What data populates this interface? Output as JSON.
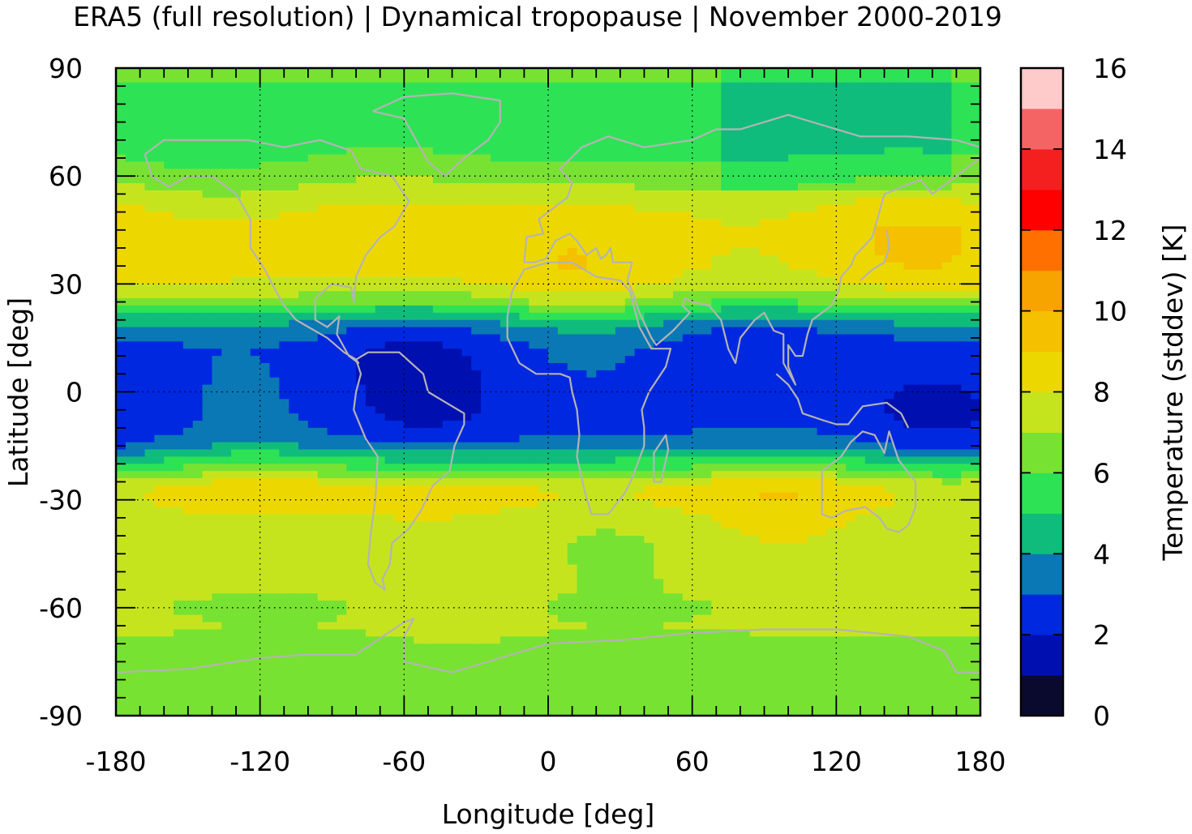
{
  "chart_data": {
    "type": "heatmap",
    "title": "ERA5 (full resolution) | Dynamical tropopause | November 2000-2019",
    "xlabel": "Longitude [deg]",
    "ylabel": "Latitude [deg]",
    "colorbar_label": "Temperature (stddev) [K]",
    "xlim": [
      -180,
      180
    ],
    "ylim": [
      -90,
      90
    ],
    "x_ticks": [
      -180,
      -120,
      -60,
      0,
      60,
      120,
      180
    ],
    "y_ticks": [
      90,
      60,
      30,
      0,
      -30,
      -60,
      -90
    ],
    "x_tick_labels": [
      "-180",
      "-120",
      "-60",
      "0",
      "60",
      "120",
      "180"
    ],
    "y_tick_labels": [
      "90",
      "60",
      "30",
      "0",
      "-30",
      "-60",
      "-90"
    ],
    "grid": true,
    "colorbar": {
      "range": [
        0,
        16
      ],
      "tick_values": [
        0,
        2,
        4,
        6,
        8,
        10,
        12,
        14,
        16
      ],
      "tick_labels": [
        "0",
        "2",
        "4",
        "6",
        "8",
        "10",
        "12",
        "14",
        "16"
      ],
      "levels": [
        {
          "from": 0,
          "to": 1,
          "color": "#0a0a2e"
        },
        {
          "from": 1,
          "to": 2,
          "color": "#0010b0"
        },
        {
          "from": 2,
          "to": 3,
          "color": "#0028e0"
        },
        {
          "from": 3,
          "to": 4,
          "color": "#0a78b4"
        },
        {
          "from": 4,
          "to": 5,
          "color": "#10bc7c"
        },
        {
          "from": 5,
          "to": 6,
          "color": "#2ee256"
        },
        {
          "from": 6,
          "to": 7,
          "color": "#78e232"
        },
        {
          "from": 7,
          "to": 8,
          "color": "#c6e41e"
        },
        {
          "from": 8,
          "to": 9,
          "color": "#ecd800"
        },
        {
          "from": 9,
          "to": 10,
          "color": "#f4c000"
        },
        {
          "from": 10,
          "to": 11,
          "color": "#f8a400"
        },
        {
          "from": 11,
          "to": 12,
          "color": "#ff7000"
        },
        {
          "from": 12,
          "to": 13,
          "color": "#ff0000"
        },
        {
          "from": 13,
          "to": 14,
          "color": "#f42020"
        },
        {
          "from": 14,
          "to": 15,
          "color": "#f46464"
        },
        {
          "from": 15,
          "to": 16,
          "color": "#ffcaca"
        }
      ]
    },
    "zonal_profile": {
      "latitudes": [
        90,
        80,
        70,
        65,
        60,
        55,
        50,
        45,
        40,
        35,
        30,
        25,
        22,
        18,
        12,
        5,
        0,
        -5,
        -10,
        -15,
        -18,
        -22,
        -26,
        -30,
        -35,
        -40,
        -45,
        -50,
        -55,
        -60,
        -65,
        -70,
        -75,
        -80,
        -90
      ],
      "values": [
        6.5,
        5.2,
        5.5,
        6.0,
        6.6,
        7.4,
        8.2,
        8.6,
        8.6,
        8.5,
        8.0,
        6.5,
        5.0,
        3.5,
        2.5,
        2.4,
        2.4,
        2.4,
        2.6,
        3.5,
        4.8,
        6.2,
        8.2,
        8.4,
        7.8,
        7.5,
        7.4,
        7.4,
        7.3,
        7.0,
        7.2,
        6.7,
        6.5,
        6.2,
        6.4
      ]
    }
  }
}
